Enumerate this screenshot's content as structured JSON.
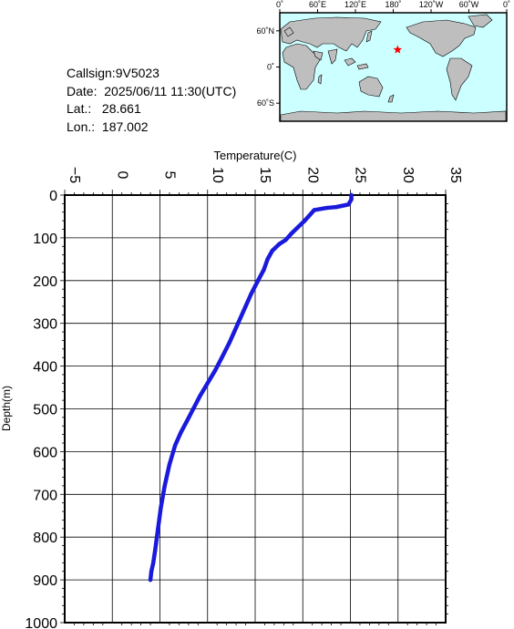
{
  "info": {
    "callsign": "Callsign:9V5023",
    "date": "Date:  2025/06/11 11:30(UTC)",
    "lat": "Lat.:   28.661",
    "lon": "Lon.:  187.002"
  },
  "map": {
    "lon_labels": [
      "0˚",
      "60˚E",
      "120˚E",
      "180˚",
      "120˚W",
      "60˚W",
      "0˚"
    ],
    "lat_labels": [
      "60˚N",
      "0˚",
      "60˚S"
    ],
    "ocean_color": "#ccffff",
    "land_color": "#bebebe",
    "marker_color": "#ff0000",
    "marker_icon": "star-icon",
    "marker": {
      "lon": 187.002,
      "lat": 28.661
    }
  },
  "chart_data": {
    "type": "line",
    "title": "",
    "xlabel": "Temperature(C)",
    "ylabel": "Depth(m)",
    "xlim": [
      -5,
      35
    ],
    "ylim": [
      0,
      1000
    ],
    "y_inverted": true,
    "x_axis_position": "top",
    "grid": true,
    "x_ticks": [
      "-5",
      "0",
      "5",
      "10",
      "15",
      "20",
      "25",
      "30",
      "35"
    ],
    "y_ticks": [
      "0",
      "100",
      "200",
      "300",
      "400",
      "500",
      "600",
      "700",
      "800",
      "900",
      "1000"
    ],
    "series": [
      {
        "color": "#1a1adc",
        "points": [
          [
            25.1,
            0
          ],
          [
            25.1,
            10
          ],
          [
            24.8,
            22
          ],
          [
            23.5,
            28
          ],
          [
            22.5,
            30
          ],
          [
            21.2,
            35
          ],
          [
            20.8,
            45
          ],
          [
            20.2,
            60
          ],
          [
            19.5,
            75
          ],
          [
            18.8,
            90
          ],
          [
            18.2,
            105
          ],
          [
            17.5,
            115
          ],
          [
            16.8,
            130
          ],
          [
            16.3,
            150
          ],
          [
            15.9,
            175
          ],
          [
            15.3,
            200
          ],
          [
            14.6,
            230
          ],
          [
            14.0,
            260
          ],
          [
            13.2,
            300
          ],
          [
            12.3,
            345
          ],
          [
            11.5,
            380
          ],
          [
            10.8,
            410
          ],
          [
            10.0,
            440
          ],
          [
            9.2,
            470
          ],
          [
            8.5,
            500
          ],
          [
            7.8,
            530
          ],
          [
            7.2,
            555
          ],
          [
            6.6,
            585
          ],
          [
            6.0,
            630
          ],
          [
            5.5,
            680
          ],
          [
            5.1,
            730
          ],
          [
            4.8,
            780
          ],
          [
            4.5,
            830
          ],
          [
            4.3,
            860
          ],
          [
            4.1,
            880
          ],
          [
            4.0,
            900
          ]
        ]
      }
    ]
  }
}
